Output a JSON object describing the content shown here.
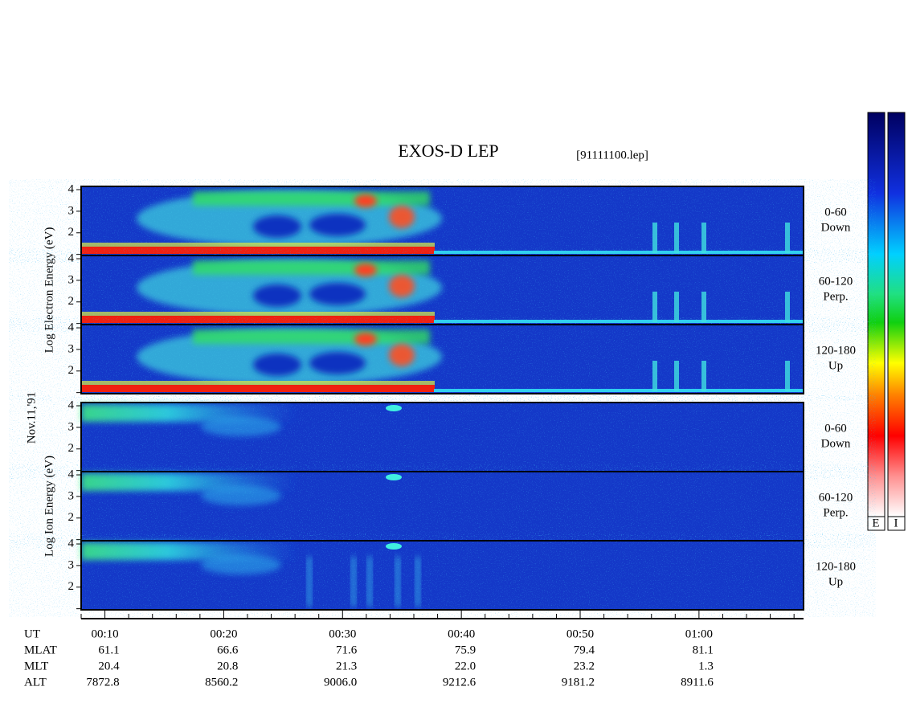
{
  "chart_data": {
    "type": "spectrogram",
    "title": "EXOS-D LEP",
    "file": "[91111100.lep]",
    "date_label": "Nov.11,'91",
    "groups": [
      {
        "ylabel": "Log Electron Energy (eV)",
        "species": "electron",
        "panels": [
          {
            "range": "0-60",
            "direction": "Down"
          },
          {
            "range": "60-120",
            "direction": "Perp."
          },
          {
            "range": "120-180",
            "direction": "Up"
          }
        ]
      },
      {
        "ylabel": "Log Ion Energy (eV)",
        "species": "ion",
        "panels": [
          {
            "range": "0-60",
            "direction": "Down"
          },
          {
            "range": "60-120",
            "direction": "Perp."
          },
          {
            "range": "120-180",
            "direction": "Up"
          }
        ]
      }
    ],
    "ylim": [
      0.95,
      4.15
    ],
    "yticks": [
      2,
      3,
      4
    ],
    "minor_yticks": [
      1
    ],
    "xlim": [
      8,
      68.8
    ],
    "xticks": [
      {
        "value": 10,
        "label": "00:10"
      },
      {
        "value": 20,
        "label": "00:20"
      },
      {
        "value": 30,
        "label": "00:30"
      },
      {
        "value": 40,
        "label": "00:40"
      },
      {
        "value": 50,
        "label": "00:50"
      },
      {
        "value": 60,
        "label": "01:00"
      }
    ],
    "minor_xticks": [
      8,
      12,
      14,
      16,
      18,
      22,
      24,
      26,
      28,
      32,
      34,
      36,
      38,
      42,
      44,
      46,
      48,
      52,
      54,
      56,
      58,
      62,
      64,
      66,
      68
    ],
    "table": {
      "time_label": "UT",
      "row_labels": [
        "MLAT",
        "MLT",
        "ALT"
      ],
      "rows": [
        [
          "61.1",
          "66.6",
          "71.6",
          "75.9",
          "79.4",
          "81.1"
        ],
        [
          "20.4",
          "20.8",
          "21.3",
          "22.0",
          "23.2",
          "1.3"
        ],
        [
          "7872.8",
          "8560.2",
          "9006.0",
          "9212.6",
          "9181.2",
          "8911.6"
        ]
      ]
    },
    "colorbar_labels": [
      "E",
      "I"
    ]
  }
}
